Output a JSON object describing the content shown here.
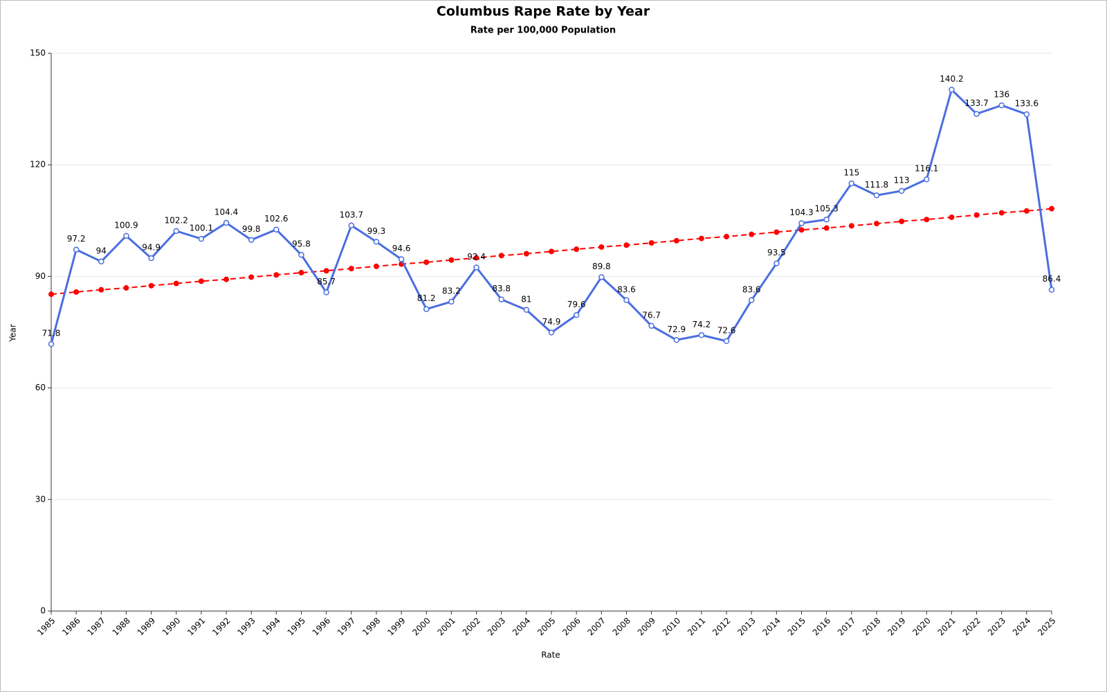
{
  "chart_data": {
    "type": "line",
    "title": "Columbus Rape Rate by Year",
    "subtitle": "Rate per 100,000 Population",
    "x_label": "Rate",
    "y_label": "Year",
    "categories": [
      "1985",
      "1986",
      "1987",
      "1988",
      "1989",
      "1990",
      "1991",
      "1992",
      "1993",
      "1994",
      "1995",
      "1996",
      "1997",
      "1998",
      "1999",
      "2000",
      "2001",
      "2002",
      "2003",
      "2004",
      "2005",
      "2006",
      "2007",
      "2008",
      "2009",
      "2010",
      "2011",
      "2012",
      "2013",
      "2014",
      "2015",
      "2016",
      "2017",
      "2018",
      "2019",
      "2020",
      "2021",
      "2022",
      "2023",
      "2024",
      "2025"
    ],
    "series": [
      {
        "color": "#4a6ee0",
        "values": [
          71.8,
          97.2,
          94,
          100.9,
          94.9,
          102.2,
          100.1,
          104.4,
          99.8,
          102.6,
          95.8,
          85.7,
          103.7,
          99.3,
          94.6,
          81.2,
          83.2,
          92.4,
          83.8,
          81,
          74.9,
          79.6,
          89.8,
          83.6,
          76.7,
          72.9,
          74.2,
          72.6,
          83.6,
          93.5,
          104.3,
          105.3,
          115,
          111.8,
          113,
          116.1,
          140.2,
          133.7,
          136,
          133.6,
          86.4
        ]
      },
      {
        "color": "#ff0000",
        "dashed": true,
        "values": [
          85.2,
          85.8,
          86.4,
          86.9,
          87.5,
          88.1,
          88.7,
          89.2,
          89.8,
          90.4,
          91.0,
          91.5,
          92.1,
          92.7,
          93.3,
          93.8,
          94.4,
          95.0,
          95.6,
          96.1,
          96.7,
          97.3,
          97.9,
          98.4,
          99.0,
          99.6,
          100.2,
          100.7,
          101.3,
          101.9,
          102.5,
          103.0,
          103.6,
          104.2,
          104.8,
          105.3,
          105.9,
          106.5,
          107.1,
          107.6,
          108.2
        ]
      }
    ],
    "data_labels": true,
    "ylim": [
      0,
      150
    ],
    "yticks": [
      0,
      30,
      60,
      90,
      120,
      150
    ],
    "grid": true
  }
}
